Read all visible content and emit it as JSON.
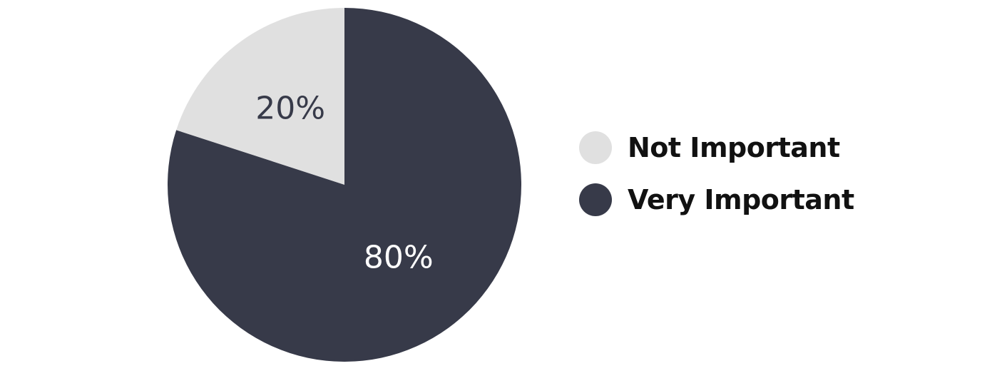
{
  "chart_data": {
    "type": "pie",
    "slices": [
      {
        "label": "Not Important",
        "value": 20,
        "display": "20%",
        "color": "#e0e0e0",
        "text_color": "#373a49"
      },
      {
        "label": "Very Important",
        "value": 80,
        "display": "80%",
        "color": "#373a49",
        "text_color": "#ffffff"
      }
    ],
    "legend_position": "right",
    "start_angle_deg": 0,
    "direction": "counterclockwise-first-slice"
  }
}
